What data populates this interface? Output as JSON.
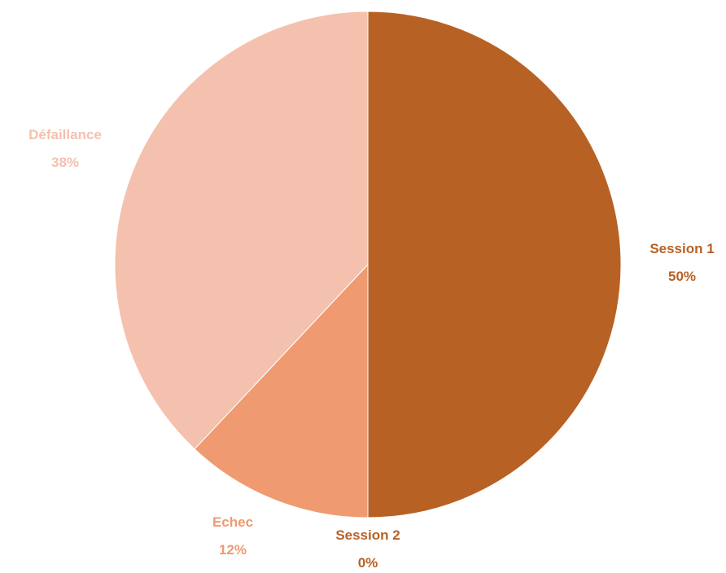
{
  "chart_data": {
    "type": "pie",
    "title": "",
    "start_angle_deg": 0,
    "direction": "clockwise",
    "slices": [
      {
        "name": "Session 1",
        "value": 50,
        "percent_label": "50%",
        "color": "#B86125"
      },
      {
        "name": "Session 2",
        "value": 0,
        "percent_label": "0%",
        "color": "#C0652A"
      },
      {
        "name": "Echec",
        "value": 12,
        "percent_label": "12%",
        "color": "#EF9A70"
      },
      {
        "name": "Défaillance",
        "value": 38,
        "percent_label": "38%",
        "color": "#F4C1AE"
      }
    ],
    "label_colors": {
      "Session 1": "#B86125",
      "Session 2": "#B86125",
      "Echec": "#EF9A70",
      "Défaillance": "#F4C1AE"
    },
    "legend": "none",
    "data_labels": "category and percent, outside end"
  }
}
